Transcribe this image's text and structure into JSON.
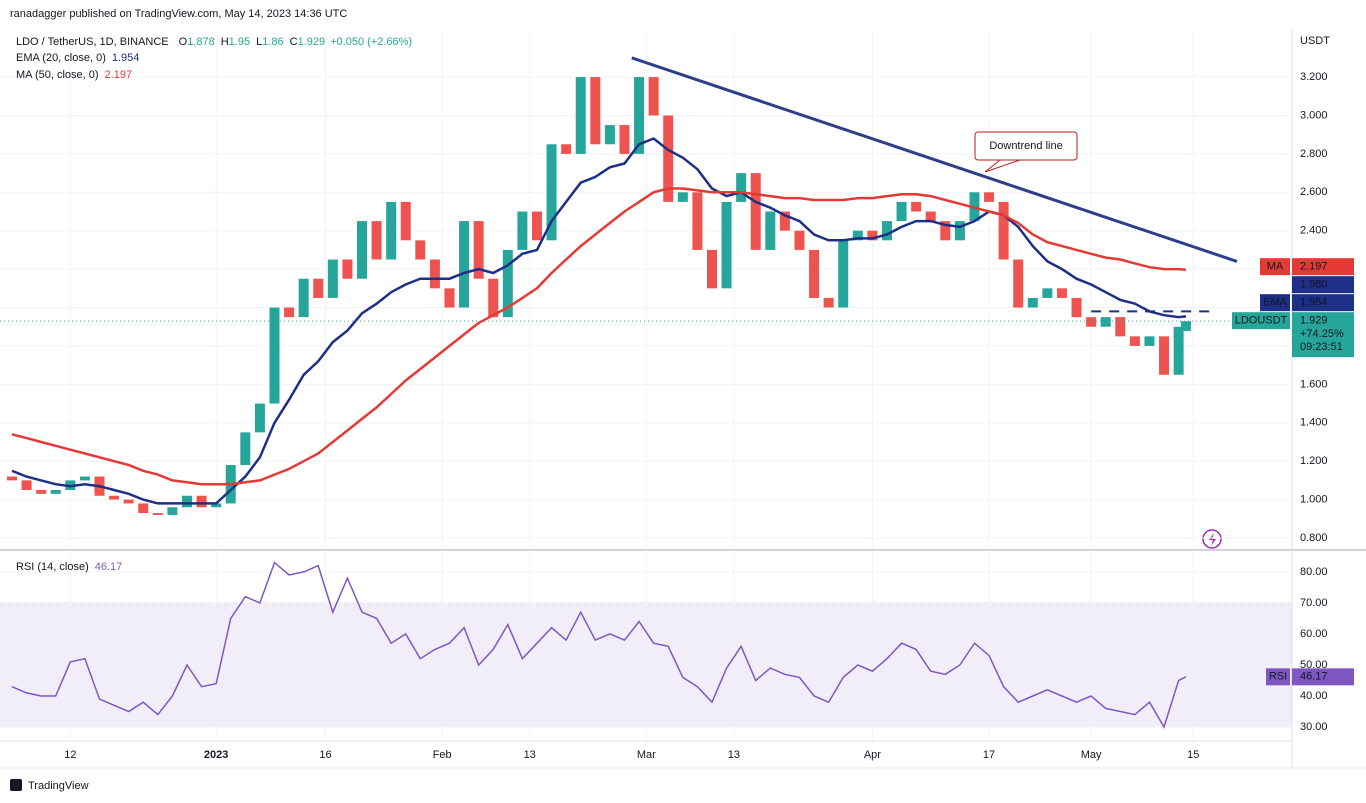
{
  "header": {
    "publisher": "ranadagger published on TradingView.com, May 14, 2023 14:36 UTC",
    "footer": "TradingView"
  },
  "chart_data": [
    {
      "type": "candlestick",
      "title": "LDO / TetherUS, 1D, BINANCE",
      "ohlc_prefixes": [
        "O",
        "H",
        "L",
        "C"
      ],
      "last_high": 1.95,
      "last_low": 1.86,
      "change": "+0.050 (+2.66%)",
      "currency": "USDT",
      "x": [
        "2022-12-04",
        "2022-12-06",
        "2022-12-08",
        "2022-12-10",
        "2022-12-12",
        "2022-12-14",
        "2022-12-16",
        "2022-12-18",
        "2022-12-20",
        "2022-12-22",
        "2022-12-24",
        "2022-12-26",
        "2022-12-28",
        "2022-12-30",
        "2023-01-01",
        "2023-01-03",
        "2023-01-05",
        "2023-01-07",
        "2023-01-09",
        "2023-01-11",
        "2023-01-13",
        "2023-01-15",
        "2023-01-17",
        "2023-01-19",
        "2023-01-21",
        "2023-01-23",
        "2023-01-25",
        "2023-01-27",
        "2023-01-29",
        "2023-01-31",
        "2023-02-02",
        "2023-02-04",
        "2023-02-06",
        "2023-02-08",
        "2023-02-10",
        "2023-02-12",
        "2023-02-14",
        "2023-02-16",
        "2023-02-18",
        "2023-02-20",
        "2023-02-22",
        "2023-02-24",
        "2023-02-26",
        "2023-02-28",
        "2023-03-02",
        "2023-03-04",
        "2023-03-06",
        "2023-03-08",
        "2023-03-10",
        "2023-03-12",
        "2023-03-14",
        "2023-03-16",
        "2023-03-18",
        "2023-03-20",
        "2023-03-22",
        "2023-03-24",
        "2023-03-26",
        "2023-03-28",
        "2023-03-30",
        "2023-04-01",
        "2023-04-03",
        "2023-04-05",
        "2023-04-07",
        "2023-04-09",
        "2023-04-11",
        "2023-04-13",
        "2023-04-15",
        "2023-04-17",
        "2023-04-19",
        "2023-04-21",
        "2023-04-23",
        "2023-04-25",
        "2023-04-27",
        "2023-04-29",
        "2023-05-01",
        "2023-05-03",
        "2023-05-05",
        "2023-05-07",
        "2023-05-09",
        "2023-05-11",
        "2023-05-13",
        "2023-05-14"
      ],
      "open": [
        1.12,
        1.1,
        1.05,
        1.03,
        1.05,
        1.1,
        1.12,
        1.02,
        1.0,
        0.98,
        0.93,
        0.92,
        0.96,
        1.02,
        0.96,
        0.98,
        1.18,
        1.35,
        1.5,
        2.0,
        1.95,
        2.15,
        2.05,
        2.25,
        2.15,
        2.45,
        2.25,
        2.55,
        2.35,
        2.25,
        2.1,
        2.0,
        2.45,
        2.15,
        1.95,
        2.3,
        2.5,
        2.35,
        2.85,
        2.8,
        3.2,
        2.85,
        2.95,
        2.8,
        3.2,
        3.0,
        2.55,
        2.6,
        2.3,
        2.1,
        2.55,
        2.7,
        2.3,
        2.5,
        2.4,
        2.3,
        2.05,
        2.0,
        2.35,
        2.4,
        2.35,
        2.45,
        2.55,
        2.5,
        2.45,
        2.35,
        2.45,
        2.6,
        2.55,
        2.25,
        2.0,
        2.05,
        2.1,
        2.05,
        1.95,
        1.9,
        1.95,
        1.85,
        1.8,
        1.85,
        1.65,
        1.878
      ],
      "close": [
        1.1,
        1.05,
        1.03,
        1.05,
        1.1,
        1.12,
        1.02,
        1.0,
        0.98,
        0.93,
        0.92,
        0.96,
        1.02,
        0.96,
        0.98,
        1.18,
        1.35,
        1.5,
        2.0,
        1.95,
        2.15,
        2.05,
        2.25,
        2.15,
        2.45,
        2.25,
        2.55,
        2.35,
        2.25,
        2.1,
        2.0,
        2.45,
        2.15,
        1.95,
        2.3,
        2.5,
        2.35,
        2.85,
        2.8,
        3.2,
        2.85,
        2.95,
        2.8,
        3.2,
        3.0,
        2.55,
        2.6,
        2.3,
        2.1,
        2.55,
        2.7,
        2.3,
        2.5,
        2.4,
        2.3,
        2.05,
        2.0,
        2.35,
        2.4,
        2.35,
        2.45,
        2.55,
        2.5,
        2.45,
        2.35,
        2.45,
        2.6,
        2.55,
        2.25,
        2.0,
        2.05,
        2.1,
        2.05,
        1.95,
        1.9,
        1.95,
        1.85,
        1.8,
        1.85,
        1.65,
        1.9,
        1.929
      ],
      "up_color": "#26a69a",
      "down_color": "#ef5350",
      "series": [
        {
          "name": "EMA (20, close, 0)",
          "short_name": "EMA",
          "color": "#1e2f87",
          "values": [
            1.15,
            1.12,
            1.1,
            1.08,
            1.07,
            1.08,
            1.07,
            1.05,
            1.03,
            1.0,
            0.98,
            0.98,
            0.98,
            0.98,
            0.98,
            1.05,
            1.12,
            1.22,
            1.4,
            1.52,
            1.65,
            1.72,
            1.82,
            1.88,
            1.97,
            2.02,
            2.08,
            2.12,
            2.15,
            2.15,
            2.15,
            2.18,
            2.2,
            2.18,
            2.22,
            2.28,
            2.3,
            2.45,
            2.55,
            2.65,
            2.68,
            2.73,
            2.75,
            2.85,
            2.88,
            2.82,
            2.78,
            2.72,
            2.62,
            2.58,
            2.6,
            2.55,
            2.52,
            2.48,
            2.45,
            2.38,
            2.35,
            2.35,
            2.36,
            2.36,
            2.38,
            2.42,
            2.45,
            2.45,
            2.43,
            2.42,
            2.45,
            2.5,
            2.48,
            2.42,
            2.32,
            2.24,
            2.2,
            2.15,
            2.12,
            2.08,
            2.04,
            2.02,
            1.98,
            1.96,
            1.95,
            1.954
          ]
        },
        {
          "name": "MA (50, close, 0)",
          "short_name": "MA",
          "color": "#e53935",
          "values": [
            1.34,
            1.32,
            1.3,
            1.28,
            1.26,
            1.24,
            1.22,
            1.2,
            1.18,
            1.15,
            1.13,
            1.1,
            1.09,
            1.08,
            1.08,
            1.08,
            1.09,
            1.1,
            1.13,
            1.16,
            1.2,
            1.24,
            1.3,
            1.36,
            1.42,
            1.48,
            1.55,
            1.62,
            1.68,
            1.74,
            1.8,
            1.86,
            1.92,
            1.96,
            2.0,
            2.05,
            2.1,
            2.18,
            2.25,
            2.32,
            2.38,
            2.44,
            2.5,
            2.55,
            2.6,
            2.62,
            2.62,
            2.61,
            2.6,
            2.6,
            2.6,
            2.59,
            2.58,
            2.57,
            2.57,
            2.56,
            2.56,
            2.56,
            2.57,
            2.57,
            2.58,
            2.59,
            2.59,
            2.58,
            2.56,
            2.54,
            2.52,
            2.5,
            2.48,
            2.44,
            2.38,
            2.34,
            2.32,
            2.3,
            2.28,
            2.26,
            2.25,
            2.23,
            2.21,
            2.2,
            2.2,
            2.197
          ]
        }
      ],
      "symbol_label": "LDOUSDT",
      "price_change": "+74.25%",
      "countdown": "09:23:51",
      "resistance": {
        "value": 1.98,
        "label": "1.980",
        "color": "#1e2f87"
      },
      "trendline": {
        "label": "Downtrend line",
        "x": [
          "2023-02-27",
          "2023-05-21"
        ],
        "y": [
          3.3,
          2.24
        ],
        "color": "#2b3f8c"
      },
      "xlim": [
        "2022-12-04",
        "2023-05-28"
      ],
      "xticks": [
        {
          "value": "2022-12-12",
          "label": "12"
        },
        {
          "value": "2023-01-01",
          "label": "2023"
        },
        {
          "value": "2023-01-16",
          "label": "16"
        },
        {
          "value": "2023-02-01",
          "label": "Feb"
        },
        {
          "value": "2023-02-13",
          "label": "13"
        },
        {
          "value": "2023-03-01",
          "label": "Mar"
        },
        {
          "value": "2023-03-13",
          "label": "13"
        },
        {
          "value": "2023-04-01",
          "label": "Apr"
        },
        {
          "value": "2023-04-17",
          "label": "17"
        },
        {
          "value": "2023-05-01",
          "label": "May"
        },
        {
          "value": "2023-05-15",
          "label": "15"
        }
      ],
      "ylim": [
        0.748,
        3.445
      ],
      "yticks": [
        {
          "value": 0.8,
          "label": "0.800"
        },
        {
          "value": 1.0,
          "label": "1.000"
        },
        {
          "value": 1.2,
          "label": "1.200"
        },
        {
          "value": 1.4,
          "label": "1.400"
        },
        {
          "value": 1.6,
          "label": "1.600"
        },
        {
          "value": 1.8,
          "label": "1.800"
        },
        {
          "value": 2.0,
          "label": "2.000"
        },
        {
          "value": 2.2,
          "label": "2.200"
        },
        {
          "value": 2.4,
          "label": "2.400"
        },
        {
          "value": 2.6,
          "label": "2.600"
        },
        {
          "value": 2.8,
          "label": "2.800"
        },
        {
          "value": 3.0,
          "label": "3.000"
        },
        {
          "value": 3.2,
          "label": "3.200"
        }
      ],
      "grid": true
    },
    {
      "type": "line",
      "title": "RSI (14, close)",
      "series": [
        {
          "name": "RSI",
          "color": "#7e57c2",
          "values": [
            43,
            41,
            40,
            40,
            51,
            52,
            39,
            37,
            35,
            38,
            34,
            40,
            50,
            43,
            44,
            65,
            72,
            70,
            83,
            79,
            80,
            82,
            67,
            78,
            67,
            65,
            57,
            60,
            52,
            55,
            57,
            62,
            50,
            55,
            63,
            52,
            57,
            62,
            58,
            67,
            58,
            60,
            58,
            64,
            57,
            56,
            46,
            43,
            38,
            49,
            56,
            45,
            49,
            47,
            46,
            40,
            38,
            46,
            50,
            48,
            52,
            57,
            55,
            48,
            47,
            50,
            57,
            53,
            43,
            38,
            40,
            42,
            40,
            38,
            40,
            36,
            35,
            34,
            38,
            30,
            45,
            46.17
          ]
        }
      ],
      "ylim": [
        25.8,
        86.1
      ],
      "yticks": [
        {
          "value": 30,
          "label": "30.00"
        },
        {
          "value": 40,
          "label": "40.00"
        },
        {
          "value": 50,
          "label": "50.00"
        },
        {
          "value": 60,
          "label": "60.00"
        },
        {
          "value": 70,
          "label": "70.00"
        },
        {
          "value": 80,
          "label": "80.00"
        }
      ],
      "band": [
        30,
        70
      ],
      "midline": 50,
      "band_color": "#7e57c2",
      "grid": true
    }
  ]
}
